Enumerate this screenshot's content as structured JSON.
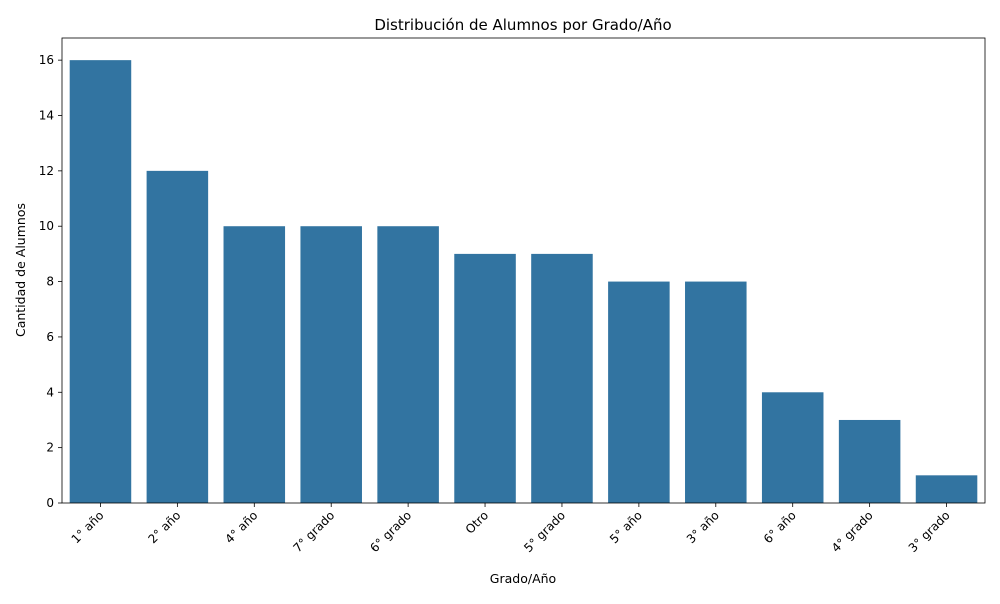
{
  "chart_data": {
    "type": "bar",
    "title": "Distribución de Alumnos por Grado/Año",
    "xlabel": "Grado/Año",
    "ylabel": "Cantidad de Alumnos",
    "categories": [
      "1° año",
      "2° año",
      "4° año",
      "7° grado",
      "6° grado",
      "Otro",
      "5° grado",
      "5° año",
      "3° año",
      "6° año",
      "4° grado",
      "3° grado"
    ],
    "values": [
      16,
      12,
      10,
      10,
      10,
      9,
      9,
      8,
      8,
      4,
      3,
      1
    ],
    "ylim": [
      0,
      16.8
    ],
    "yticks": [
      0,
      2,
      4,
      6,
      8,
      10,
      12,
      14,
      16
    ],
    "bar_color": "#3274a1",
    "grid": false,
    "legend": "none"
  }
}
